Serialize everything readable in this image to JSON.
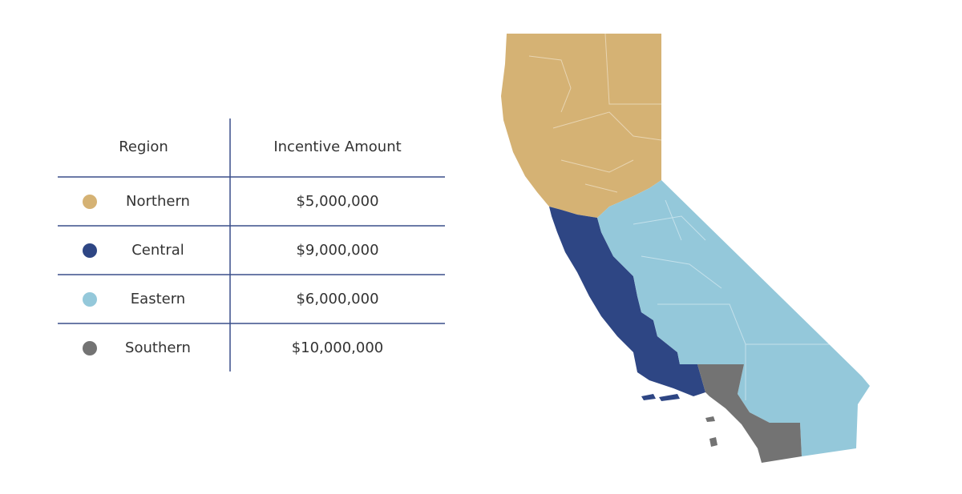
{
  "table": {
    "headers": [
      "Region",
      "Incentive Amount"
    ],
    "rows": [
      {
        "region": "Northern",
        "amount": "$5,000,000",
        "color": "#d5b274"
      },
      {
        "region": "Central",
        "amount": "$9,000,000",
        "color": "#2e4684"
      },
      {
        "region": "Eastern",
        "amount": "$6,000,000",
        "color": "#94c8da"
      },
      {
        "region": "Southern",
        "amount": "$10,000,000",
        "color": "#737373"
      }
    ]
  }
}
